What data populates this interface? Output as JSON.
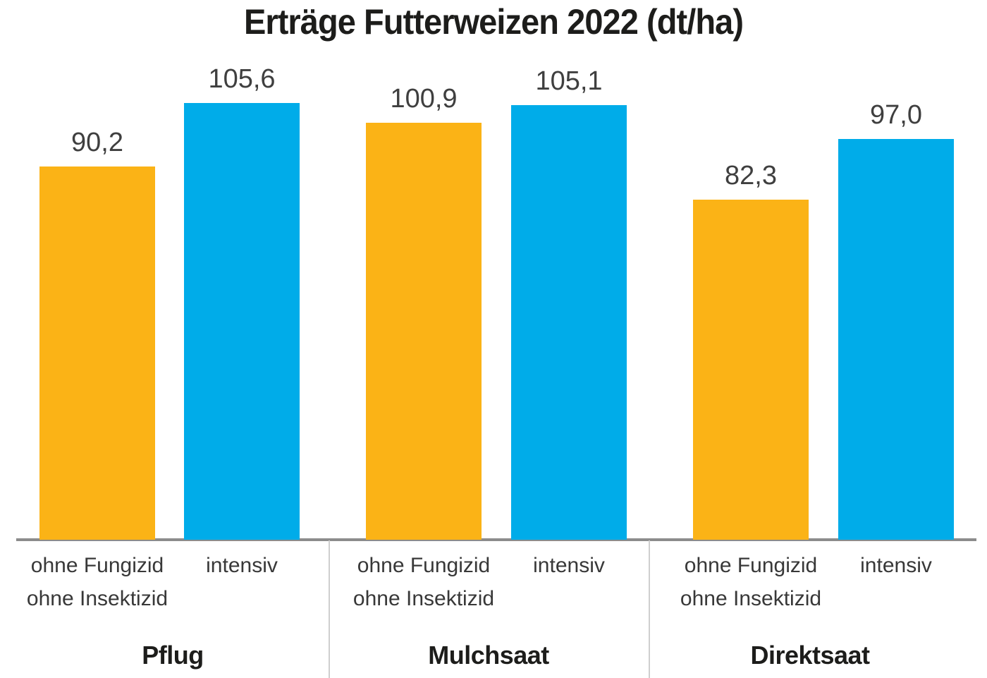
{
  "title": "Erträge Futterweizen 2022 (dt/ha)",
  "colors": {
    "bar_orange": "#FBB316",
    "bar_blue": "#00ACE9",
    "axis_line": "#8C8C8C",
    "group_separator": "#CFCFCF",
    "value_label_text": "#3F3F3F",
    "axis_label_text": "#383838",
    "title_text": "#1D1D1B",
    "background": "#FFFFFF"
  },
  "chart_data": {
    "type": "bar",
    "title": "Erträge Futterweizen 2022 (dt/ha)",
    "unit": "dt/ha",
    "xlabel": "",
    "ylabel": "",
    "ylim": [
      0,
      115
    ],
    "grid": false,
    "legend_position": "labels-below-bars",
    "categories": [
      "Pflug",
      "Mulchsaat",
      "Direktsaat"
    ],
    "series": [
      {
        "name": "ohne Fungizid ohne Insektizid",
        "label_lines": [
          "ohne Fungizid",
          "ohne Insektizid"
        ],
        "color": "#FBB316",
        "values": [
          90.2,
          100.9,
          82.3
        ],
        "value_labels": [
          "90,2",
          "100,9",
          "82,3"
        ]
      },
      {
        "name": "intensiv",
        "label_lines": [
          "intensiv"
        ],
        "color": "#00ACE9",
        "values": [
          105.6,
          105.1,
          97.0
        ],
        "value_labels": [
          "105,6",
          "105,1",
          "97,0"
        ]
      }
    ]
  }
}
